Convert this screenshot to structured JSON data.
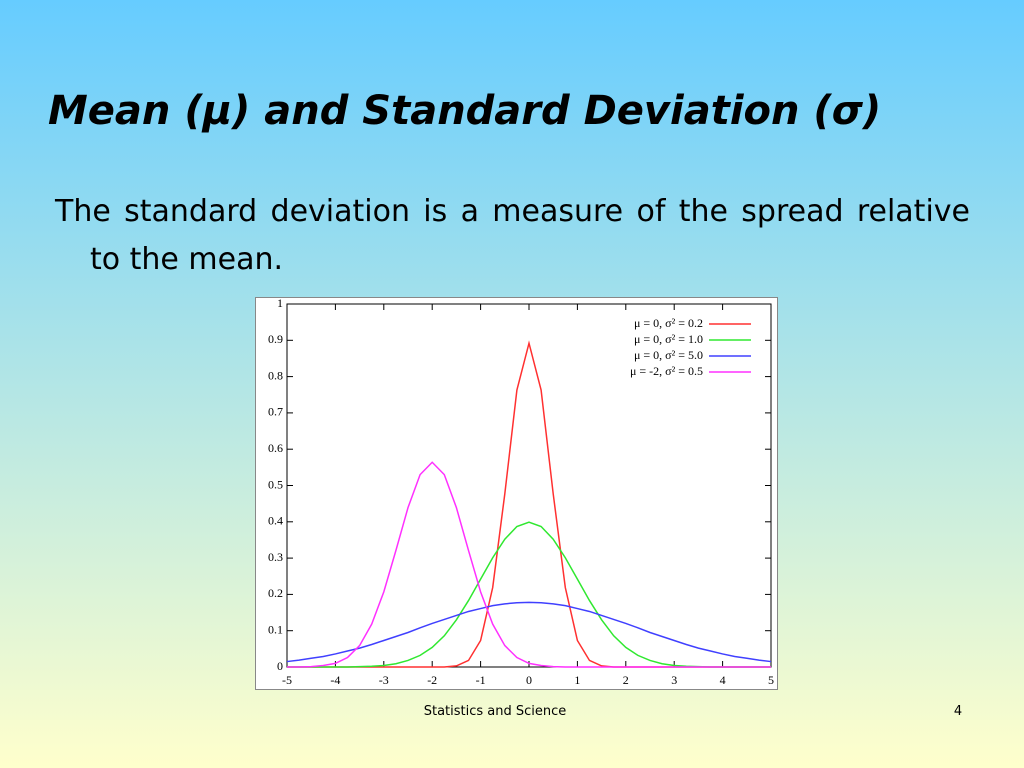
{
  "slide": {
    "title": "Mean (μ) and Standard Deviation (σ)",
    "body": "The standard deviation is a measure of the spread relative to the mean.",
    "footer": "Statistics and Science",
    "page_number": "4"
  },
  "chart_data": {
    "type": "line",
    "x": [
      -5,
      -4.75,
      -4.5,
      -4.25,
      -4,
      -3.75,
      -3.5,
      -3.25,
      -3,
      -2.75,
      -2.5,
      -2.25,
      -2,
      -1.75,
      -1.5,
      -1.25,
      -1,
      -0.75,
      -0.5,
      -0.25,
      0,
      0.25,
      0.5,
      0.75,
      1,
      1.25,
      1.5,
      1.75,
      2,
      2.25,
      2.5,
      2.75,
      3,
      3.25,
      3.5,
      3.75,
      4,
      4.25,
      4.5,
      4.75,
      5
    ],
    "series": [
      {
        "name": "μ = 0, σ² = 0.2",
        "color": "#ff3030",
        "values": [
          0,
          0,
          0,
          0,
          0,
          0,
          0,
          0,
          0,
          0,
          0,
          0,
          0,
          0,
          0.003,
          0.018,
          0.073,
          0.219,
          0.477,
          0.763,
          0.892,
          0.763,
          0.477,
          0.219,
          0.073,
          0.018,
          0.003,
          0,
          0,
          0,
          0,
          0,
          0,
          0,
          0,
          0,
          0,
          0,
          0,
          0,
          0
        ]
      },
      {
        "name": "μ = 0, σ² = 1.0",
        "color": "#30e830",
        "values": [
          0,
          0,
          0,
          0,
          0,
          0,
          0.001,
          0.002,
          0.004,
          0.009,
          0.018,
          0.032,
          0.054,
          0.086,
          0.13,
          0.183,
          0.242,
          0.301,
          0.352,
          0.387,
          0.399,
          0.387,
          0.352,
          0.301,
          0.242,
          0.183,
          0.13,
          0.086,
          0.054,
          0.032,
          0.018,
          0.009,
          0.004,
          0.002,
          0.001,
          0,
          0,
          0,
          0,
          0,
          0
        ]
      },
      {
        "name": "μ = 0, σ² = 5.0",
        "color": "#4040ff",
        "values": [
          0.015,
          0.019,
          0.024,
          0.029,
          0.036,
          0.044,
          0.052,
          0.062,
          0.073,
          0.084,
          0.095,
          0.108,
          0.12,
          0.131,
          0.142,
          0.153,
          0.161,
          0.169,
          0.174,
          0.177,
          0.178,
          0.177,
          0.174,
          0.169,
          0.161,
          0.153,
          0.142,
          0.131,
          0.12,
          0.108,
          0.095,
          0.084,
          0.073,
          0.062,
          0.052,
          0.044,
          0.036,
          0.029,
          0.024,
          0.019,
          0.015
        ]
      },
      {
        "name": "μ = -2, σ² = 0.5",
        "color": "#ff30ff",
        "values": [
          0,
          0,
          0.001,
          0.004,
          0.01,
          0.026,
          0.059,
          0.118,
          0.207,
          0.321,
          0.439,
          0.53,
          0.564,
          0.53,
          0.439,
          0.321,
          0.207,
          0.118,
          0.059,
          0.026,
          0.01,
          0.004,
          0.001,
          0,
          0,
          0,
          0,
          0,
          0,
          0,
          0,
          0,
          0,
          0,
          0,
          0,
          0,
          0,
          0,
          0,
          0
        ]
      }
    ],
    "xlim": [
      -5,
      5
    ],
    "xticks": [
      -5,
      -4,
      -3,
      -2,
      -1,
      0,
      1,
      2,
      3,
      4,
      5
    ],
    "ylim": [
      0,
      1
    ],
    "yticks": [
      0,
      0.1,
      0.2,
      0.3,
      0.4,
      0.5,
      0.6,
      0.7,
      0.8,
      0.9,
      1
    ],
    "grid": false,
    "legend": "top-right"
  }
}
